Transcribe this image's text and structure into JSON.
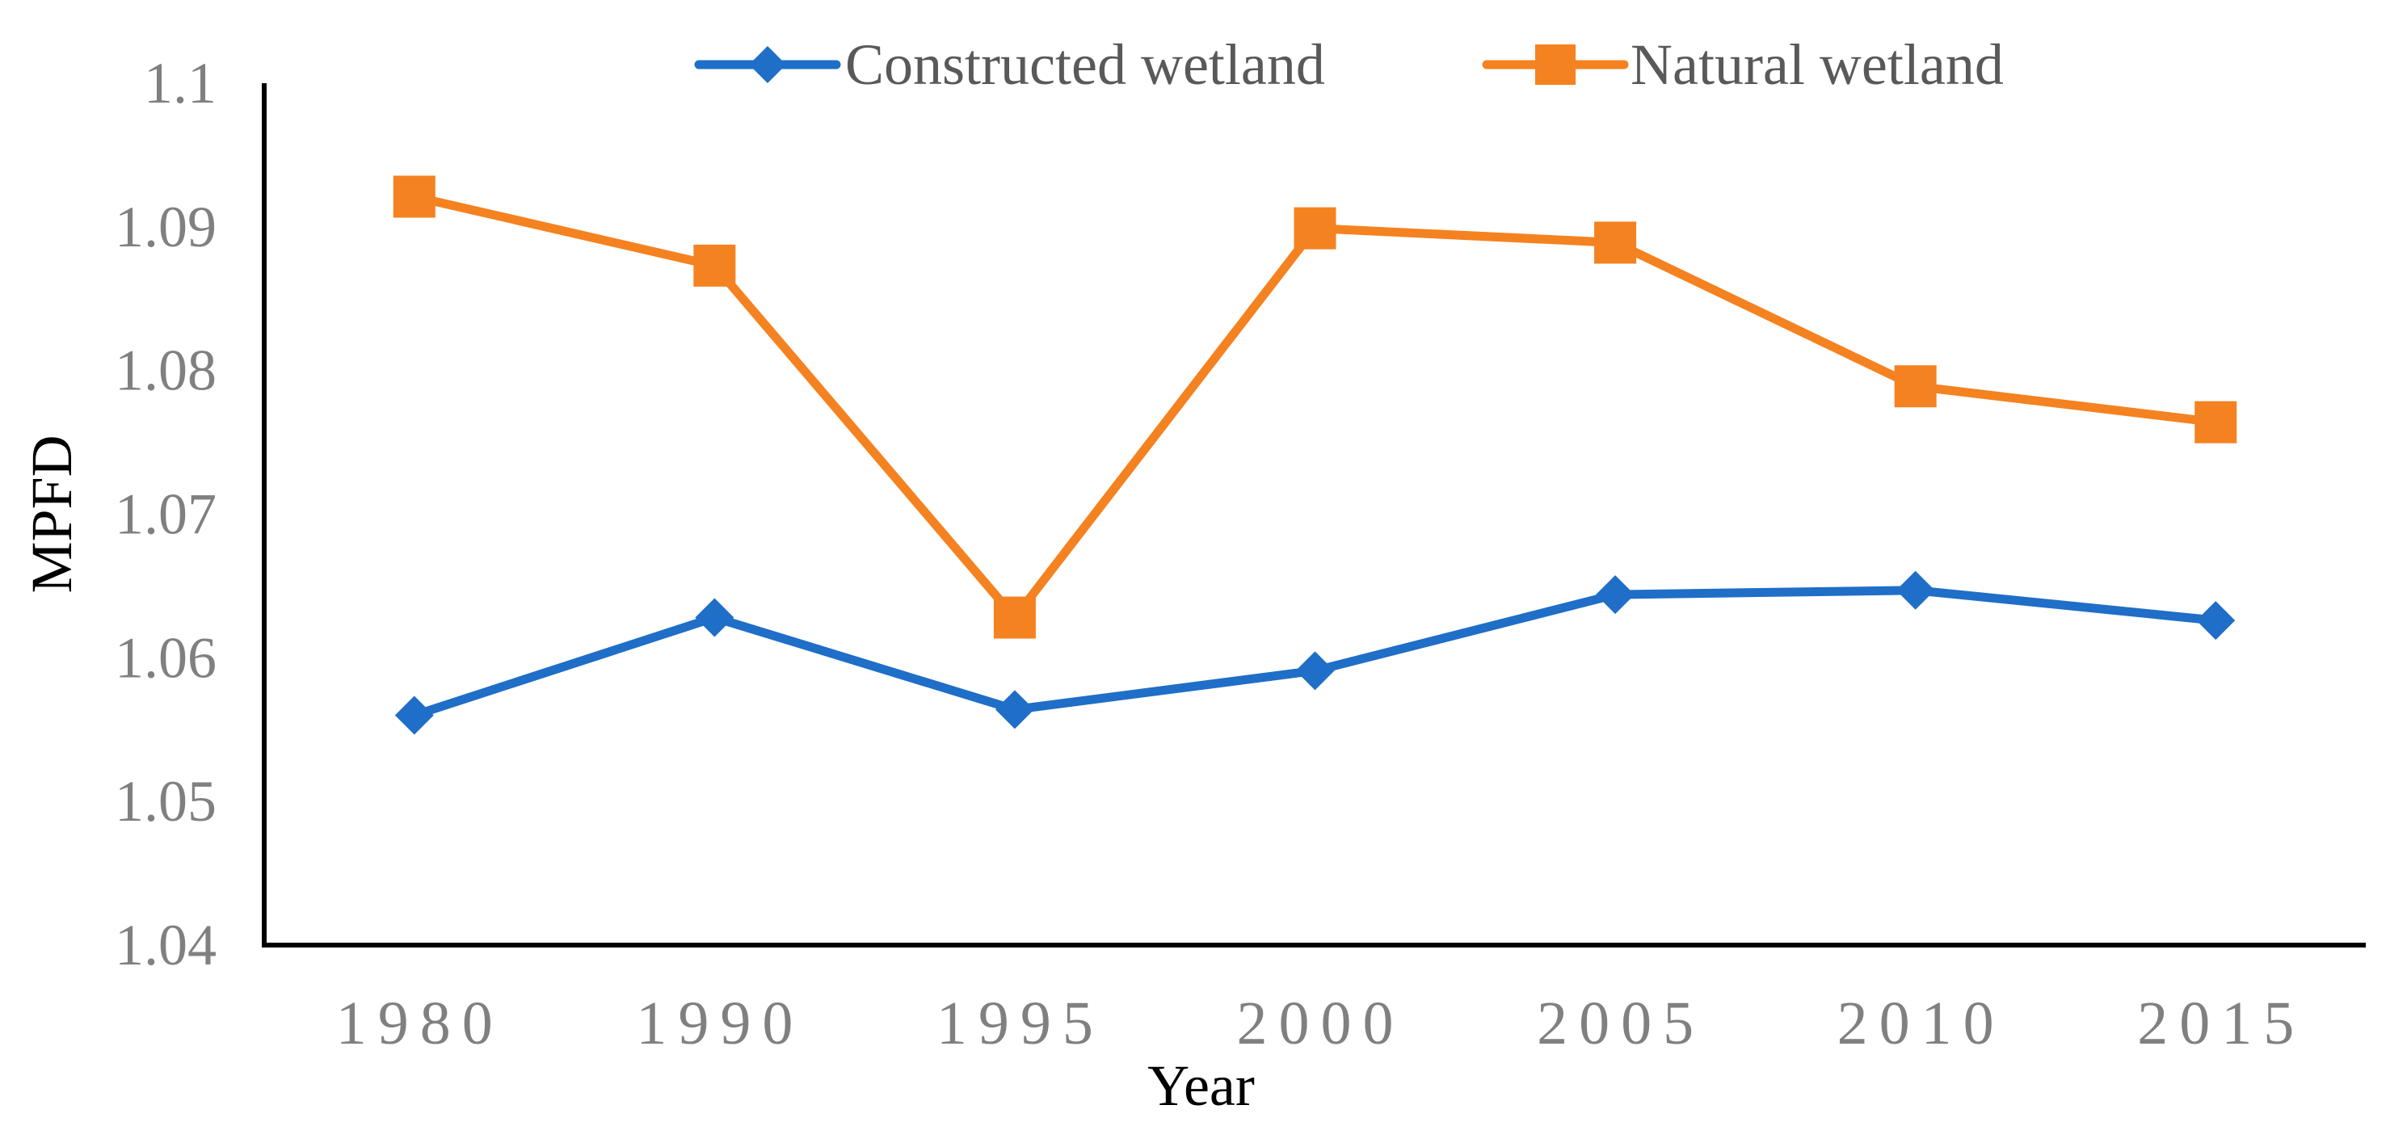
{
  "chart_data": {
    "type": "line",
    "title": "",
    "xlabel": "Year",
    "ylabel": "MPFD",
    "categories": [
      "1980",
      "1990",
      "1995",
      "2000",
      "2005",
      "2010",
      "2015"
    ],
    "ylim": [
      1.04,
      1.1
    ],
    "yticks": [
      1.04,
      1.05,
      1.06,
      1.07,
      1.08,
      1.09,
      1.1
    ],
    "ytick_labels": [
      "1.04",
      "1.05",
      "1.06",
      "1.07",
      "1.08",
      "1.09",
      "1.1"
    ],
    "grid": false,
    "legend_position": "top",
    "series": [
      {
        "name": "Constructed wetland",
        "color": "#1F6EC7",
        "marker": "diamond",
        "values": [
          1.056,
          1.0628,
          1.0564,
          1.0591,
          1.0644,
          1.0647,
          1.0626
        ]
      },
      {
        "name": "Natural wetland",
        "color": "#F58220",
        "marker": "square",
        "values": [
          1.0921,
          1.0873,
          1.0628,
          1.0899,
          1.0889,
          1.0789,
          1.0764
        ]
      }
    ]
  }
}
